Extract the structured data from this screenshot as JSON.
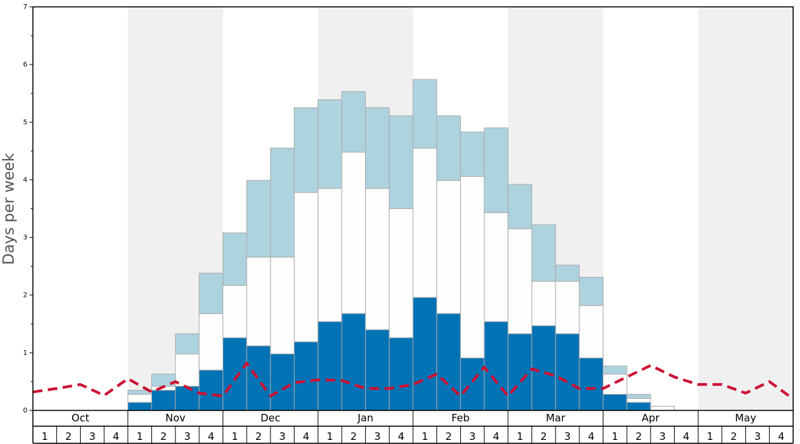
{
  "chart_data": {
    "type": "bar",
    "stacked": true,
    "ylabel": "Days per week",
    "xlabel": "",
    "title": "",
    "ylim": [
      0,
      7
    ],
    "yticks": [
      "0",
      "1",
      "2",
      "3",
      "4",
      "5",
      "6",
      "7"
    ],
    "months": [
      "Oct",
      "Nov",
      "Dec",
      "Jan",
      "Feb",
      "Mar",
      "Apr",
      "May"
    ],
    "weeks": [
      "1",
      "2",
      "3",
      "4"
    ],
    "shaded_months": [
      "Nov",
      "Jan",
      "Mar",
      "May"
    ],
    "colors": {
      "dark": "#0173b5",
      "mid": "#fefefe",
      "light": "#add3df",
      "line": "#cc1133",
      "shade": "#f0f0f0",
      "bar_border": "#aaaaaa"
    },
    "series": [
      {
        "key": "dark",
        "values": [
          0,
          0,
          0,
          0,
          0.14,
          0.35,
          0.42,
          0.7,
          1.26,
          1.12,
          0.98,
          1.19,
          1.54,
          1.68,
          1.4,
          1.26,
          1.96,
          1.68,
          0.91,
          1.54,
          1.33,
          1.47,
          1.33,
          0.91,
          0.28,
          0.14,
          0,
          0,
          0,
          0,
          0,
          0
        ]
      },
      {
        "key": "mid",
        "values": [
          0,
          0,
          0,
          0,
          0.14,
          0.07,
          0.56,
          0.98,
          0.91,
          1.54,
          1.68,
          2.59,
          2.31,
          2.8,
          2.45,
          2.24,
          2.59,
          2.31,
          3.15,
          1.89,
          1.82,
          0.77,
          0.91,
          0.91,
          0.35,
          0.07,
          0.07,
          0,
          0,
          0,
          0,
          0
        ]
      },
      {
        "key": "light",
        "values": [
          0,
          0,
          0,
          0,
          0.07,
          0.21,
          0.35,
          0.7,
          0.91,
          1.33,
          1.89,
          1.47,
          1.54,
          1.05,
          1.4,
          1.61,
          1.19,
          1.12,
          0.77,
          1.47,
          0.77,
          0.98,
          0.28,
          0.49,
          0.14,
          0.07,
          0,
          0,
          0,
          0,
          0,
          0
        ]
      }
    ],
    "line": {
      "key": "line",
      "style": "dashed",
      "values": [
        0.32,
        0.38,
        0.45,
        0.26,
        0.55,
        0.32,
        0.5,
        0.3,
        0.25,
        0.82,
        0.25,
        0.48,
        0.53,
        0.52,
        0.38,
        0.38,
        0.45,
        0.63,
        0.25,
        0.75,
        0.25,
        0.72,
        0.6,
        0.38,
        0.38,
        0.58,
        0.78,
        0.58,
        0.45,
        0.45,
        0.3,
        0.5,
        0.2
      ]
    }
  }
}
